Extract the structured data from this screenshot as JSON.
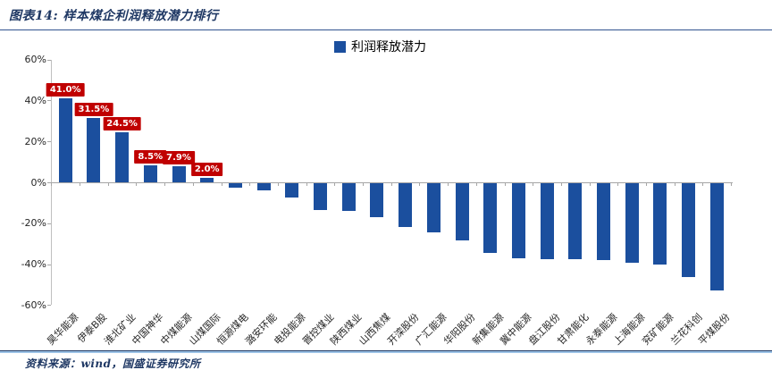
{
  "header": {
    "title": "图表14: 样本煤企利润释放潜力排行"
  },
  "chart_data": {
    "type": "bar",
    "title": "样本煤企利润释放潜力排行",
    "legend": "利润释放潜力",
    "legend_position": "top-center",
    "grid": false,
    "bar_color": "#1B4F9E",
    "data_label_bg": "#C00000",
    "data_label_color": "#FFFFFF",
    "categories": [
      "昊华能源",
      "伊泰B股",
      "淮北矿业",
      "中国神华",
      "中煤能源",
      "山煤国际",
      "恒源煤电",
      "潞安环能",
      "电投能源",
      "晋控煤业",
      "陕西煤业",
      "山西焦煤",
      "开滦股份",
      "广汇能源",
      "华阳股份",
      "新集能源",
      "冀中能源",
      "盘江股份",
      "甘肃能化",
      "永泰能源",
      "上海能源",
      "兖矿能源",
      "兰花科创",
      "平煤股份"
    ],
    "values": [
      41.0,
      31.5,
      24.5,
      8.5,
      7.9,
      2.0,
      -2.0,
      -3.7,
      -7.0,
      -13.0,
      -13.4,
      -16.6,
      -21.6,
      -24.0,
      -28.0,
      -33.9,
      -36.8,
      -37.0,
      -37.2,
      -37.6,
      -38.8,
      -39.8,
      -45.9,
      -52.4
    ],
    "data_labels": [
      "41.0%",
      "31.5%",
      "24.5%",
      "8.5%",
      "7.9%",
      "2.0%",
      "",
      "",
      "",
      "",
      "",
      "",
      "",
      "",
      "",
      "",
      "",
      "",
      "",
      "",
      "",
      "",
      "",
      ""
    ],
    "y_axis": {
      "ylim": [
        -60,
        60
      ],
      "tick_values": [
        60,
        40,
        20,
        0,
        -20,
        -40,
        -60
      ],
      "tick_labels": [
        "60%",
        "40%",
        "20%",
        "0%",
        "-20%",
        "-40%",
        "-60%"
      ]
    }
  },
  "footer": {
    "source": "资料来源：wind，国盛证券研究所"
  }
}
